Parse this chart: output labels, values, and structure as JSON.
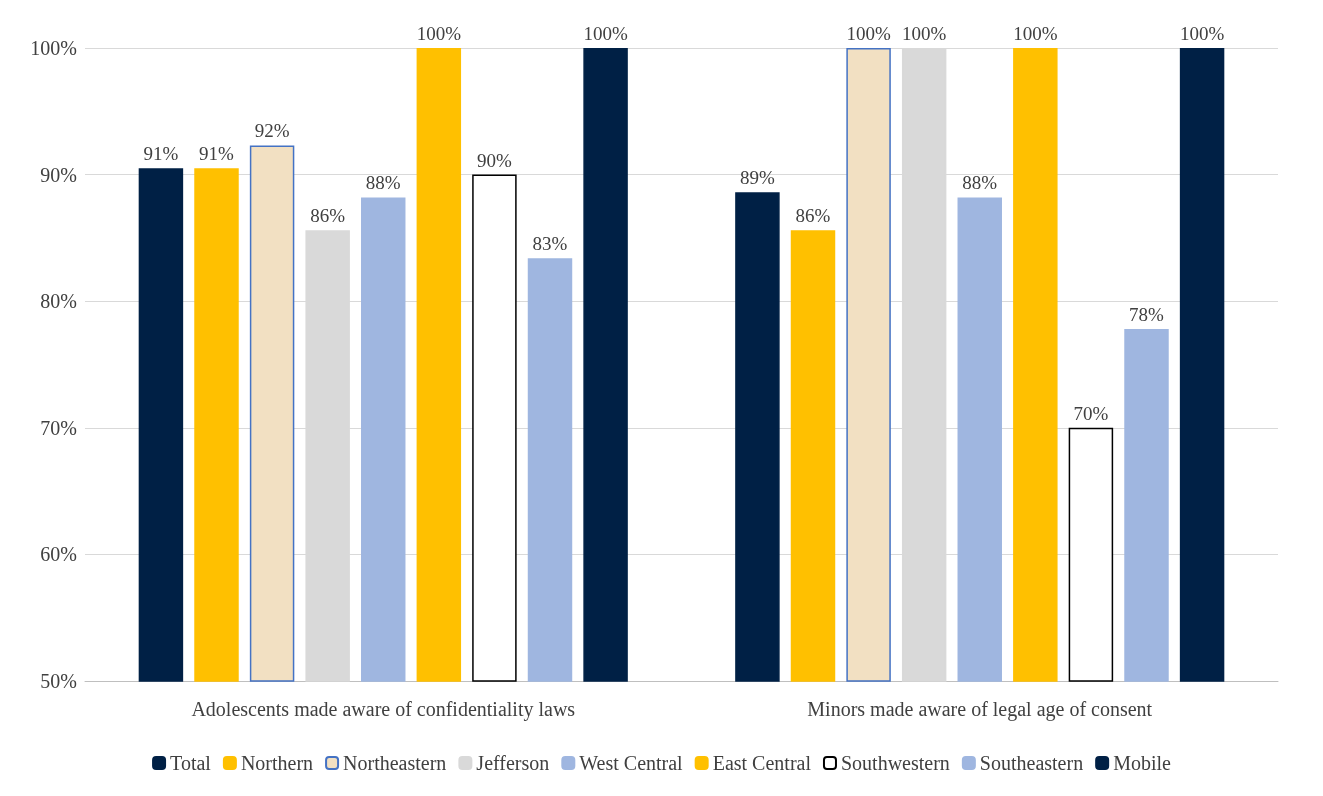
{
  "chart_data": {
    "type": "bar",
    "categories": [
      "Adolescents made aware of confidentiality laws",
      "Minors made aware of legal age of consent"
    ],
    "series": [
      {
        "name": "Total",
        "color": "#002045",
        "values": [
          90.5,
          88.6
        ],
        "value_labels": [
          "91%",
          "89%"
        ]
      },
      {
        "name": "Northern",
        "color": "#ffc000",
        "values": [
          90.5,
          85.6
        ],
        "value_labels": [
          "91%",
          "86%"
        ]
      },
      {
        "name": "Northeastern",
        "color": "#f2e0c2",
        "values": [
          92.3,
          100
        ],
        "value_labels": [
          "92%",
          "100%"
        ]
      },
      {
        "name": "Jefferson",
        "color": "#d9d9d9",
        "values": [
          85.6,
          100
        ],
        "value_labels": [
          "86%",
          "100%"
        ]
      },
      {
        "name": "West Central",
        "color": "#9fb6e0",
        "values": [
          88.2,
          88.2
        ],
        "value_labels": [
          "88%",
          "88%"
        ]
      },
      {
        "name": "East Central",
        "color": "#ffc000",
        "values": [
          100,
          100
        ],
        "value_labels": [
          "100%",
          "100%"
        ]
      },
      {
        "name": "Southwestern",
        "color": "#ffffff",
        "values": [
          90.0,
          70.0
        ],
        "value_labels": [
          "90%",
          "70%"
        ]
      },
      {
        "name": "Southeastern",
        "color": "#9fb6e0",
        "values": [
          83.4,
          77.8
        ],
        "value_labels": [
          "83%",
          "78%"
        ]
      },
      {
        "name": "Mobile",
        "color": "#002045",
        "values": [
          100,
          100
        ],
        "value_labels": [
          "100%",
          "100%"
        ]
      }
    ],
    "ylim": [
      50,
      100
    ],
    "yticks": [
      {
        "value": 50,
        "label": "50%"
      },
      {
        "value": 60,
        "label": "60%"
      },
      {
        "value": 70,
        "label": "70%"
      },
      {
        "value": 80,
        "label": "80%"
      },
      {
        "value": 90,
        "label": "90%"
      },
      {
        "value": 100,
        "label": "100%"
      }
    ],
    "grid": "y",
    "legend": "bottom"
  }
}
